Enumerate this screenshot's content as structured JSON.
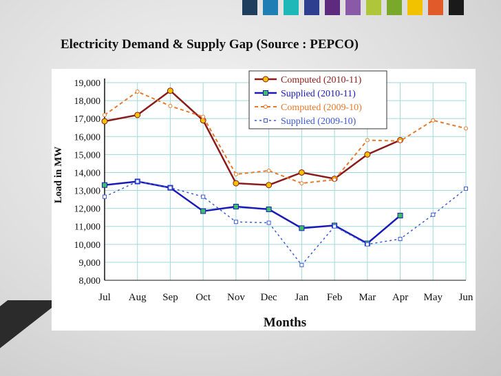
{
  "slide": {
    "title": "Electricity Demand & Supply Gap (Source : PEPCO)",
    "swatch_colors": [
      "#1f3d5c",
      "#1f7fb5",
      "#1fb8b8",
      "#2f3f8f",
      "#5e2a7e",
      "#8a5aa8",
      "#b0c63a",
      "#7aa82a",
      "#f2c200",
      "#e05a2a",
      "#1a1a1a"
    ]
  },
  "watermark": {
    "icon": "blog-watermark-icon"
  },
  "chart_data": {
    "type": "line",
    "title": "",
    "xlabel": "Months",
    "ylabel": "Load in MW",
    "categories": [
      "Jul",
      "Aug",
      "Sep",
      "Oct",
      "Nov",
      "Dec",
      "Jan",
      "Feb",
      "Mar",
      "Apr",
      "May",
      "Jun"
    ],
    "ylim": [
      8000,
      19000
    ],
    "yticks": [
      "8,000",
      "9,000",
      "10,000",
      "11,000",
      "12,000",
      "13,000",
      "14,000",
      "15,000",
      "16,000",
      "17,000",
      "18,000",
      "19,000"
    ],
    "grid": true,
    "legend_position": "top-right",
    "series": [
      {
        "name": "Computed (2010-11)",
        "color": "#8b1a1a",
        "style": "solid",
        "marker": "circle",
        "values": [
          16850,
          17200,
          18550,
          16900,
          13400,
          13300,
          14000,
          13650,
          15000,
          15800,
          null,
          null
        ]
      },
      {
        "name": "Supplied (2010-11)",
        "color": "#1a1ab8",
        "style": "solid",
        "marker": "square",
        "values": [
          13300,
          13500,
          13150,
          11850,
          12100,
          11950,
          10900,
          11050,
          10050,
          11600,
          null,
          null
        ]
      },
      {
        "name": "Computed (2009-10)",
        "color": "#e8782a",
        "style": "dashed",
        "marker": "circle-open",
        "values": [
          17200,
          18500,
          17700,
          17100,
          13900,
          14100,
          13400,
          13600,
          15800,
          15750,
          16900,
          16450
        ]
      },
      {
        "name": "Supplied (2009-10)",
        "color": "#3a5ad8",
        "style": "dotted",
        "marker": "square-open",
        "values": [
          12650,
          13500,
          13150,
          12650,
          11250,
          11200,
          8850,
          11000,
          10000,
          10300,
          11650,
          13100
        ]
      }
    ]
  }
}
